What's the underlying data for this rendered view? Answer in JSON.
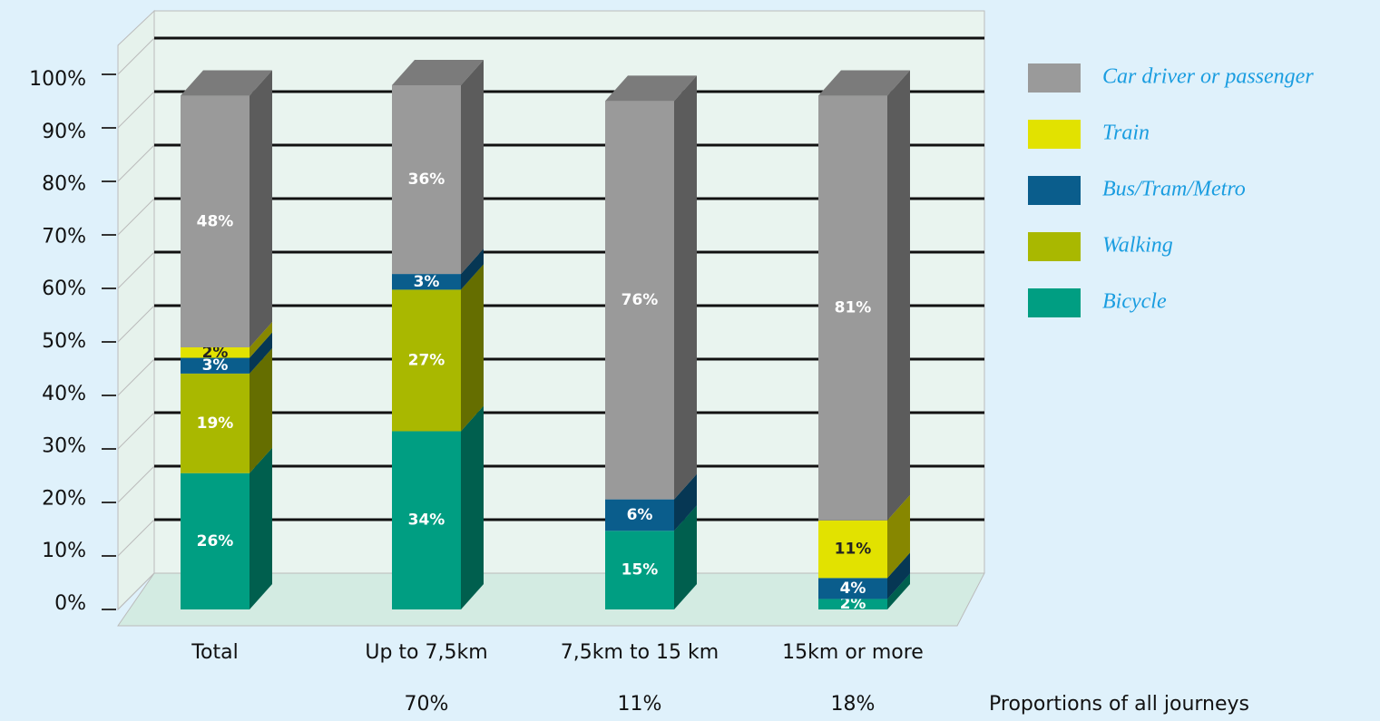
{
  "chart_data": {
    "type": "stacked_bar_3d",
    "categories": [
      "Total",
      "Up to 7,5km",
      "7,5km to 15 km",
      "15km or more"
    ],
    "series": [
      {
        "name": "Bicycle",
        "color": "#009e82",
        "values": [
          26,
          34,
          15,
          2
        ],
        "value_labels": [
          "26%",
          "34%",
          "15%",
          "2%"
        ]
      },
      {
        "name": "Walking",
        "color": "#a9b800",
        "values": [
          19,
          27,
          null,
          null
        ],
        "value_labels": [
          "19%",
          "27%",
          null,
          null
        ]
      },
      {
        "name": "Bus/Tram/Metro",
        "color": "#0a5d8c",
        "values": [
          3,
          3,
          6,
          4
        ],
        "value_labels": [
          "3%",
          "3%",
          "6%",
          "4%"
        ]
      },
      {
        "name": "Train",
        "color": "#e2e200",
        "values": [
          2,
          null,
          null,
          11
        ],
        "value_labels": [
          "2%",
          null,
          null,
          "11%"
        ]
      },
      {
        "name": "Car driver or passenger",
        "color": "#9a9a9a",
        "values": [
          48,
          36,
          76,
          81
        ],
        "value_labels": [
          "48%",
          "36%",
          "76%",
          "81%"
        ]
      }
    ],
    "ylim": [
      0,
      100
    ],
    "yticks": [
      {
        "value": 0,
        "label": "0%"
      },
      {
        "value": 10,
        "label": "10%"
      },
      {
        "value": 20,
        "label": "20%"
      },
      {
        "value": 30,
        "label": "30%"
      },
      {
        "value": 40,
        "label": "40%"
      },
      {
        "value": 50,
        "label": "50%"
      },
      {
        "value": 60,
        "label": "60%"
      },
      {
        "value": 70,
        "label": "70%"
      },
      {
        "value": 80,
        "label": "80%"
      },
      {
        "value": 90,
        "label": "90%"
      },
      {
        "value": 100,
        "label": "100%"
      }
    ],
    "grid": true,
    "legend": "right",
    "share_labels": [
      null,
      "70%",
      "11%",
      "18%"
    ],
    "share_caption": "Proportions of all journeys"
  }
}
